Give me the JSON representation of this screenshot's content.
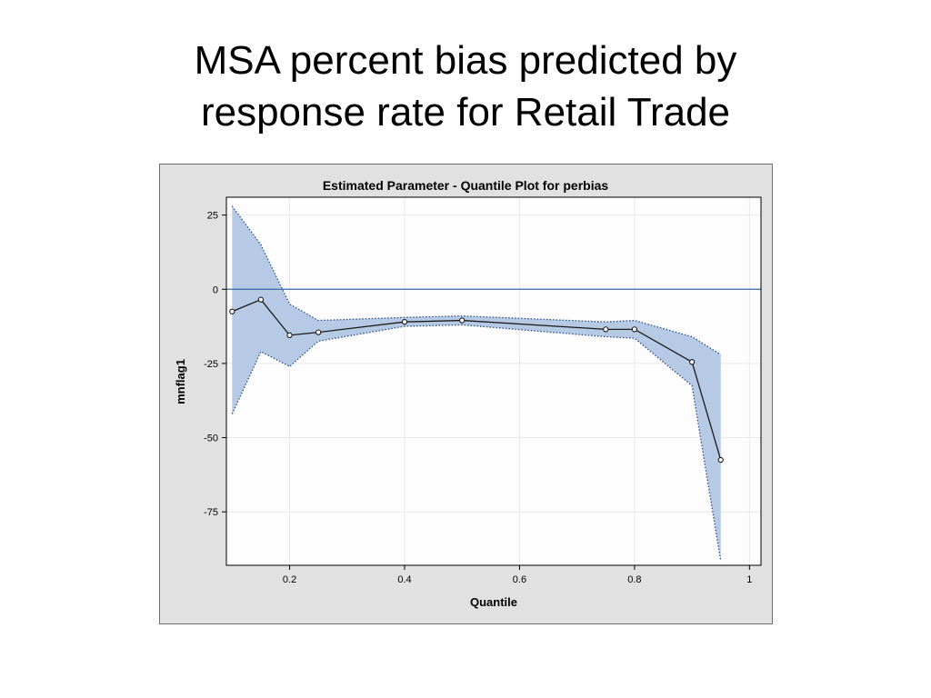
{
  "slide": {
    "title_line1": "MSA percent bias predicted by",
    "title_line2": "response rate for Retail Trade"
  },
  "chart_data": {
    "type": "line",
    "title": "Estimated Parameter - Quantile Plot for  perbias",
    "xlabel": "Quantile",
    "ylabel": "mnflag1",
    "xlim": [
      0.09,
      1.02
    ],
    "ylim": [
      -93,
      31
    ],
    "xticks": [
      0.2,
      0.4,
      0.6,
      0.8,
      1
    ],
    "xtick_labels": [
      "0.2",
      "0.4",
      "0.6",
      "0.8",
      "1"
    ],
    "yticks": [
      25,
      0,
      -25,
      -50,
      -75
    ],
    "ytick_labels": [
      "25",
      "0",
      "-25",
      "-50",
      "-75"
    ],
    "grid": true,
    "reference_line": {
      "y": 0
    },
    "series": [
      {
        "x": [
          0.1,
          0.15,
          0.2,
          0.25,
          0.4,
          0.5,
          0.75,
          0.8,
          0.9,
          0.95
        ],
        "values": [
          -7.5,
          -3.5,
          -15.5,
          -14.5,
          -11,
          -10.5,
          -13.5,
          -13.5,
          -24.5,
          -57.5
        ]
      }
    ],
    "confidence_band": {
      "x": [
        0.1,
        0.15,
        0.2,
        0.25,
        0.4,
        0.5,
        0.75,
        0.8,
        0.9,
        0.95
      ],
      "upper": [
        28,
        15,
        -5,
        -10.5,
        -9.5,
        -9,
        -11,
        -10.5,
        -16,
        -22
      ],
      "lower": [
        -42,
        -21,
        -26,
        -17.5,
        -12.5,
        -12,
        -16,
        -16.5,
        -32.5,
        -91.5
      ]
    },
    "colors": {
      "band": "#b7cae5",
      "band_edge": "#2d4f86",
      "line": "#1a1a1a",
      "reference": "#3a6aa8",
      "panel": "#e1e1e1",
      "plot": "#fdfdfd",
      "grid": "#e8e8e8"
    }
  }
}
